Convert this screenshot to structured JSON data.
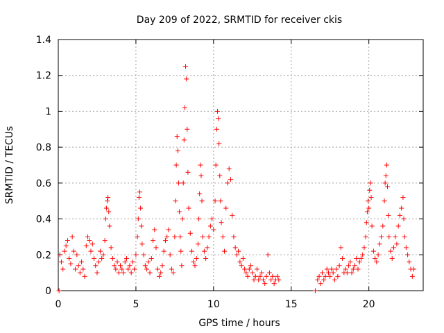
{
  "chart_data": {
    "type": "scatter",
    "title": "Day 209 of 2022, SRMTID for receiver ckis",
    "xlabel": "GPS time / hours",
    "ylabel": "SRMTID / TECUs",
    "xlim": [
      0,
      23.5
    ],
    "ylim": [
      0,
      1.4
    ],
    "x_ticks": [
      0,
      5,
      10,
      15,
      20
    ],
    "y_ticks": [
      0,
      0.2,
      0.4,
      0.6,
      0.8,
      1,
      1.2,
      1.4
    ],
    "x_tick_labels": [
      "0",
      "5",
      "10",
      "15",
      "20"
    ],
    "y_tick_labels": [
      "0",
      "0.2",
      "0.4",
      "0.6",
      "0.8",
      "1",
      "1.2",
      "1.4"
    ],
    "grid": true,
    "marker": "plus",
    "series_color": "#ff0000",
    "series": [
      {
        "name": "SRMTID",
        "points": [
          [
            0.05,
            0.0
          ],
          [
            0.1,
            0.2
          ],
          [
            0.2,
            0.16
          ],
          [
            0.3,
            0.12
          ],
          [
            0.4,
            0.22
          ],
          [
            0.5,
            0.25
          ],
          [
            0.6,
            0.28
          ],
          [
            0.7,
            0.18
          ],
          [
            0.8,
            0.15
          ],
          [
            0.9,
            0.3
          ],
          [
            1.0,
            0.22
          ],
          [
            1.1,
            0.12
          ],
          [
            1.2,
            0.2
          ],
          [
            1.3,
            0.14
          ],
          [
            1.4,
            0.1
          ],
          [
            1.5,
            0.16
          ],
          [
            1.6,
            0.12
          ],
          [
            1.7,
            0.08
          ],
          [
            1.8,
            0.25
          ],
          [
            1.9,
            0.3
          ],
          [
            2.0,
            0.28
          ],
          [
            2.1,
            0.22
          ],
          [
            2.2,
            0.26
          ],
          [
            2.3,
            0.18
          ],
          [
            2.4,
            0.14
          ],
          [
            2.5,
            0.1
          ],
          [
            2.6,
            0.16
          ],
          [
            2.7,
            0.22
          ],
          [
            2.8,
            0.18
          ],
          [
            2.9,
            0.2
          ],
          [
            3.0,
            0.28
          ],
          [
            3.05,
            0.4
          ],
          [
            3.1,
            0.46
          ],
          [
            3.15,
            0.5
          ],
          [
            3.2,
            0.52
          ],
          [
            3.25,
            0.44
          ],
          [
            3.3,
            0.36
          ],
          [
            3.4,
            0.24
          ],
          [
            3.5,
            0.18
          ],
          [
            3.6,
            0.14
          ],
          [
            3.7,
            0.12
          ],
          [
            3.8,
            0.16
          ],
          [
            3.9,
            0.1
          ],
          [
            4.0,
            0.14
          ],
          [
            4.1,
            0.12
          ],
          [
            4.2,
            0.1
          ],
          [
            4.3,
            0.16
          ],
          [
            4.4,
            0.18
          ],
          [
            4.5,
            0.12
          ],
          [
            4.6,
            0.14
          ],
          [
            4.7,
            0.1
          ],
          [
            4.8,
            0.16
          ],
          [
            4.9,
            0.12
          ],
          [
            5.0,
            0.2
          ],
          [
            5.1,
            0.3
          ],
          [
            5.15,
            0.4
          ],
          [
            5.2,
            0.52
          ],
          [
            5.25,
            0.55
          ],
          [
            5.3,
            0.46
          ],
          [
            5.35,
            0.36
          ],
          [
            5.4,
            0.26
          ],
          [
            5.5,
            0.2
          ],
          [
            5.6,
            0.14
          ],
          [
            5.7,
            0.12
          ],
          [
            5.8,
            0.16
          ],
          [
            5.9,
            0.1
          ],
          [
            6.0,
            0.18
          ],
          [
            6.1,
            0.28
          ],
          [
            6.2,
            0.34
          ],
          [
            6.3,
            0.24
          ],
          [
            6.4,
            0.12
          ],
          [
            6.5,
            0.08
          ],
          [
            6.6,
            0.1
          ],
          [
            6.7,
            0.14
          ],
          [
            6.8,
            0.22
          ],
          [
            6.9,
            0.28
          ],
          [
            7.0,
            0.3
          ],
          [
            7.1,
            0.34
          ],
          [
            7.2,
            0.2
          ],
          [
            7.3,
            0.12
          ],
          [
            7.4,
            0.1
          ],
          [
            7.5,
            0.3
          ],
          [
            7.55,
            0.5
          ],
          [
            7.6,
            0.7
          ],
          [
            7.65,
            0.86
          ],
          [
            7.7,
            0.78
          ],
          [
            7.75,
            0.6
          ],
          [
            7.8,
            0.44
          ],
          [
            7.85,
            0.3
          ],
          [
            7.9,
            0.22
          ],
          [
            7.95,
            0.14
          ],
          [
            8.0,
            0.4
          ],
          [
            8.05,
            0.6
          ],
          [
            8.1,
            0.84
          ],
          [
            8.15,
            1.02
          ],
          [
            8.2,
            1.25
          ],
          [
            8.25,
            1.18
          ],
          [
            8.3,
            0.9
          ],
          [
            8.35,
            0.66
          ],
          [
            8.4,
            0.46
          ],
          [
            8.5,
            0.32
          ],
          [
            8.6,
            0.22
          ],
          [
            8.7,
            0.16
          ],
          [
            8.8,
            0.14
          ],
          [
            8.9,
            0.18
          ],
          [
            9.0,
            0.26
          ],
          [
            9.05,
            0.4
          ],
          [
            9.1,
            0.54
          ],
          [
            9.15,
            0.7
          ],
          [
            9.2,
            0.64
          ],
          [
            9.25,
            0.5
          ],
          [
            9.3,
            0.3
          ],
          [
            9.4,
            0.22
          ],
          [
            9.5,
            0.18
          ],
          [
            9.6,
            0.24
          ],
          [
            9.7,
            0.3
          ],
          [
            9.8,
            0.36
          ],
          [
            9.9,
            0.4
          ],
          [
            10.0,
            0.34
          ],
          [
            10.1,
            0.5
          ],
          [
            10.15,
            0.7
          ],
          [
            10.2,
            0.9
          ],
          [
            10.25,
            1.0
          ],
          [
            10.3,
            0.96
          ],
          [
            10.35,
            0.82
          ],
          [
            10.4,
            0.64
          ],
          [
            10.45,
            0.5
          ],
          [
            10.5,
            0.38
          ],
          [
            10.6,
            0.3
          ],
          [
            10.7,
            0.22
          ],
          [
            10.8,
            0.46
          ],
          [
            10.9,
            0.6
          ],
          [
            11.0,
            0.68
          ],
          [
            11.1,
            0.62
          ],
          [
            11.2,
            0.42
          ],
          [
            11.3,
            0.3
          ],
          [
            11.4,
            0.24
          ],
          [
            11.5,
            0.2
          ],
          [
            11.6,
            0.22
          ],
          [
            11.7,
            0.16
          ],
          [
            11.8,
            0.14
          ],
          [
            11.9,
            0.18
          ],
          [
            12.0,
            0.12
          ],
          [
            12.1,
            0.1
          ],
          [
            12.2,
            0.08
          ],
          [
            12.3,
            0.12
          ],
          [
            12.4,
            0.14
          ],
          [
            12.5,
            0.1
          ],
          [
            12.6,
            0.06
          ],
          [
            12.7,
            0.08
          ],
          [
            12.8,
            0.12
          ],
          [
            12.9,
            0.06
          ],
          [
            13.0,
            0.08
          ],
          [
            13.1,
            0.1
          ],
          [
            13.2,
            0.06
          ],
          [
            13.3,
            0.04
          ],
          [
            13.4,
            0.08
          ],
          [
            13.5,
            0.2
          ],
          [
            13.6,
            0.1
          ],
          [
            13.7,
            0.06
          ],
          [
            13.8,
            0.08
          ],
          [
            13.9,
            0.04
          ],
          [
            14.0,
            0.06
          ],
          [
            14.1,
            0.08
          ],
          [
            14.2,
            0.06
          ],
          [
            16.55,
            0.0
          ],
          [
            16.7,
            0.06
          ],
          [
            16.8,
            0.08
          ],
          [
            16.9,
            0.04
          ],
          [
            17.0,
            0.1
          ],
          [
            17.1,
            0.06
          ],
          [
            17.2,
            0.08
          ],
          [
            17.3,
            0.12
          ],
          [
            17.4,
            0.1
          ],
          [
            17.5,
            0.08
          ],
          [
            17.6,
            0.12
          ],
          [
            17.7,
            0.1
          ],
          [
            17.8,
            0.06
          ],
          [
            17.9,
            0.12
          ],
          [
            18.0,
            0.08
          ],
          [
            18.1,
            0.14
          ],
          [
            18.2,
            0.24
          ],
          [
            18.3,
            0.18
          ],
          [
            18.4,
            0.1
          ],
          [
            18.5,
            0.12
          ],
          [
            18.6,
            0.1
          ],
          [
            18.7,
            0.14
          ],
          [
            18.8,
            0.16
          ],
          [
            18.9,
            0.1
          ],
          [
            19.0,
            0.12
          ],
          [
            19.1,
            0.14
          ],
          [
            19.2,
            0.18
          ],
          [
            19.3,
            0.12
          ],
          [
            19.4,
            0.16
          ],
          [
            19.5,
            0.18
          ],
          [
            19.6,
            0.2
          ],
          [
            19.7,
            0.24
          ],
          [
            19.8,
            0.3
          ],
          [
            19.85,
            0.38
          ],
          [
            19.9,
            0.44
          ],
          [
            19.95,
            0.5
          ],
          [
            20.0,
            0.46
          ],
          [
            20.05,
            0.56
          ],
          [
            20.1,
            0.6
          ],
          [
            20.15,
            0.52
          ],
          [
            20.2,
            0.36
          ],
          [
            20.3,
            0.22
          ],
          [
            20.4,
            0.18
          ],
          [
            20.5,
            0.16
          ],
          [
            20.6,
            0.2
          ],
          [
            20.7,
            0.26
          ],
          [
            20.8,
            0.3
          ],
          [
            20.9,
            0.36
          ],
          [
            21.0,
            0.5
          ],
          [
            21.05,
            0.6
          ],
          [
            21.1,
            0.64
          ],
          [
            21.15,
            0.7
          ],
          [
            21.2,
            0.58
          ],
          [
            21.25,
            0.42
          ],
          [
            21.3,
            0.3
          ],
          [
            21.4,
            0.22
          ],
          [
            21.5,
            0.18
          ],
          [
            21.6,
            0.24
          ],
          [
            21.7,
            0.3
          ],
          [
            21.8,
            0.26
          ],
          [
            21.9,
            0.36
          ],
          [
            22.0,
            0.42
          ],
          [
            22.1,
            0.46
          ],
          [
            22.2,
            0.52
          ],
          [
            22.25,
            0.4
          ],
          [
            22.3,
            0.3
          ],
          [
            22.4,
            0.24
          ],
          [
            22.5,
            0.2
          ],
          [
            22.6,
            0.16
          ],
          [
            22.7,
            0.12
          ],
          [
            22.8,
            0.08
          ],
          [
            22.9,
            0.12
          ]
        ]
      }
    ]
  }
}
